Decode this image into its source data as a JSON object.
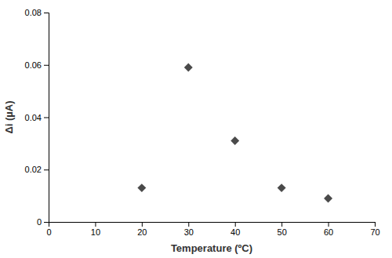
{
  "chart_data": {
    "type": "scatter",
    "x": [
      20,
      30,
      40,
      50,
      60
    ],
    "values": [
      0.013,
      0.059,
      0.031,
      0.013,
      0.009
    ],
    "color": "#4a4a4a",
    "marker": "diamond",
    "xlabel": "Temperature (ºC)",
    "ylabel": "Δi (µA)",
    "xlim": [
      0,
      70
    ],
    "ylim": [
      0,
      0.08
    ],
    "xticks": [
      0,
      10,
      20,
      30,
      40,
      50,
      60,
      70
    ],
    "yticks": [
      0,
      0.02,
      0.04,
      0.06,
      0.08
    ],
    "grid": false
  }
}
